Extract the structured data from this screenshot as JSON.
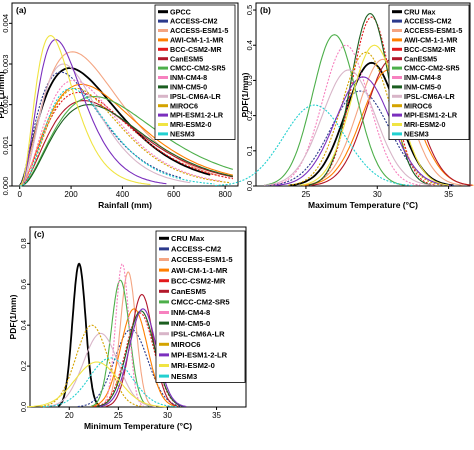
{
  "chart_data": [
    {
      "type": "line",
      "panel_label": "(a)",
      "xlabel": "Rainfall (mm)",
      "ylabel": "PDF (1/mm)",
      "xlim": [
        -30,
        850
      ],
      "ylim": [
        0,
        0.0045
      ],
      "xticks": [
        0,
        200,
        400,
        600,
        800
      ],
      "yticks": [
        0,
        0.001,
        0.002,
        0.003,
        0.004
      ],
      "ytick_labels": [
        "0.000",
        "0.001",
        "0.002",
        "0.003",
        "0.004"
      ],
      "legend_position": "top-right",
      "series": [
        {
          "name": "GPCC",
          "color": "#000000",
          "peak_x": 195,
          "peak_y": 0.0029
        },
        {
          "name": "ACCESS-CM2",
          "color": "#2b3a8c",
          "peak_x": 160,
          "peak_y": 0.0028
        },
        {
          "name": "ACCESS-ESM1-5",
          "color": "#f4a582",
          "peak_x": 205,
          "peak_y": 0.0033
        },
        {
          "name": "AWI-CM-1-1-MR",
          "color": "#ff7f00",
          "peak_x": 240,
          "peak_y": 0.0025
        },
        {
          "name": "BCC-CSM2-MR",
          "color": "#e31a1c",
          "peak_x": 230,
          "peak_y": 0.0023
        },
        {
          "name": "CanESM5",
          "color": "#b2182b",
          "peak_x": 250,
          "peak_y": 0.0021
        },
        {
          "name": "CMCC-CM2-SR5",
          "color": "#4daf4a",
          "peak_x": 290,
          "peak_y": 0.0022
        },
        {
          "name": "INM-CM4-8",
          "color": "#f781bf",
          "peak_x": 210,
          "peak_y": 0.0026
        },
        {
          "name": "INM-CM5-0",
          "color": "#1b5e20",
          "peak_x": 270,
          "peak_y": 0.002
        },
        {
          "name": "IPSL-CM6A-LR",
          "color": "#d8b5c8",
          "peak_x": 170,
          "peak_y": 0.003
        },
        {
          "name": "MIROC6",
          "color": "#d4a300",
          "peak_x": 220,
          "peak_y": 0.0024
        },
        {
          "name": "MPI-ESM1-2-LR",
          "color": "#7b2fbe",
          "peak_x": 140,
          "peak_y": 0.0036
        },
        {
          "name": "MRI-ESM2-0",
          "color": "#f0e442",
          "peak_x": 120,
          "peak_y": 0.0037
        },
        {
          "name": "NESM3",
          "color": "#22d0d0",
          "peak_x": 200,
          "peak_y": 0.0024
        }
      ]
    },
    {
      "type": "line",
      "panel_label": "(b)",
      "xlabel": "Maximum Temperature (°C)",
      "ylabel": "PDF(1/mm)",
      "xlim": [
        21.5,
        36.5
      ],
      "ylim": [
        0,
        0.52
      ],
      "xticks": [
        25,
        30,
        35
      ],
      "yticks": [
        0,
        0.1,
        0.2,
        0.3,
        0.4,
        0.5
      ],
      "ytick_labels": [
        "0.0",
        "0.1",
        "0.2",
        "0.3",
        "0.4",
        "0.5"
      ],
      "legend_position": "top-right",
      "series": [
        {
          "name": "CRU Max",
          "color": "#000000",
          "peak_x": 29.6,
          "peak_y": 0.35
        },
        {
          "name": "ACCESS-CM2",
          "color": "#2b3a8c",
          "peak_x": 28.8,
          "peak_y": 0.27
        },
        {
          "name": "ACCESS-ESM1-5",
          "color": "#f4a582",
          "peak_x": 30.4,
          "peak_y": 0.36
        },
        {
          "name": "AWI-CM-1-1-MR",
          "color": "#ff7f00",
          "peak_x": 30.8,
          "peak_y": 0.33
        },
        {
          "name": "BCC-CSM2-MR",
          "color": "#e31a1c",
          "peak_x": 29.6,
          "peak_y": 0.48
        },
        {
          "name": "CanESM5",
          "color": "#b2182b",
          "peak_x": 31.0,
          "peak_y": 0.36
        },
        {
          "name": "CMCC-CM2-SR5",
          "color": "#4daf4a",
          "peak_x": 27.0,
          "peak_y": 0.43
        },
        {
          "name": "INM-CM4-8",
          "color": "#f781bf",
          "peak_x": 27.8,
          "peak_y": 0.4
        },
        {
          "name": "INM-CM5-0",
          "color": "#1b5e20",
          "peak_x": 29.5,
          "peak_y": 0.49
        },
        {
          "name": "IPSL-CM6A-LR",
          "color": "#d8b5c8",
          "peak_x": 28.0,
          "peak_y": 0.33
        },
        {
          "name": "MIROC6",
          "color": "#d4a300",
          "peak_x": 29.2,
          "peak_y": 0.38
        },
        {
          "name": "MPI-ESM1-2-LR",
          "color": "#7b2fbe",
          "peak_x": 29.0,
          "peak_y": 0.31
        },
        {
          "name": "MRI-ESM2-0",
          "color": "#f0e442",
          "peak_x": 29.8,
          "peak_y": 0.4
        },
        {
          "name": "NESM3",
          "color": "#22d0d0",
          "peak_x": 25.6,
          "peak_y": 0.23
        }
      ]
    },
    {
      "type": "line",
      "panel_label": "(c)",
      "xlabel": "Minimum Temperature (°C)",
      "ylabel": "PDF(1/mm)",
      "xlim": [
        16,
        38
      ],
      "ylim": [
        0,
        0.88
      ],
      "xticks": [
        20,
        25,
        30,
        35
      ],
      "yticks": [
        0,
        0.2,
        0.4,
        0.6,
        0.8
      ],
      "ytick_labels": [
        "0.0",
        "0.2",
        "0.4",
        "0.6",
        "0.8"
      ],
      "legend_position": "top-right",
      "series": [
        {
          "name": "CRU Max",
          "color": "#000000",
          "peak_x": 21.0,
          "peak_y": 0.7
        },
        {
          "name": "ACCESS-CM2",
          "color": "#2b3a8c",
          "peak_x": 26.3,
          "peak_y": 0.38
        },
        {
          "name": "ACCESS-ESM1-5",
          "color": "#f4a582",
          "peak_x": 26.0,
          "peak_y": 0.66
        },
        {
          "name": "AWI-CM-1-1-MR",
          "color": "#ff7f00",
          "peak_x": 26.6,
          "peak_y": 0.48
        },
        {
          "name": "BCC-CSM2-MR",
          "color": "#e31a1c",
          "peak_x": 27.2,
          "peak_y": 0.46
        },
        {
          "name": "CanESM5",
          "color": "#b2182b",
          "peak_x": 27.4,
          "peak_y": 0.55
        },
        {
          "name": "CMCC-CM2-SR5",
          "color": "#4daf4a",
          "peak_x": 25.2,
          "peak_y": 0.62
        },
        {
          "name": "INM-CM4-8",
          "color": "#f781bf",
          "peak_x": 25.4,
          "peak_y": 0.7
        },
        {
          "name": "INM-CM5-0",
          "color": "#1b5e20",
          "peak_x": 27.3,
          "peak_y": 0.47
        },
        {
          "name": "IPSL-CM6A-LR",
          "color": "#d8b5c8",
          "peak_x": 23.2,
          "peak_y": 0.36
        },
        {
          "name": "MIROC6",
          "color": "#d4a300",
          "peak_x": 22.3,
          "peak_y": 0.4
        },
        {
          "name": "MPI-ESM1-2-LR",
          "color": "#7b2fbe",
          "peak_x": 27.5,
          "peak_y": 0.48
        },
        {
          "name": "MRI-ESM2-0",
          "color": "#f0e442",
          "peak_x": 22.8,
          "peak_y": 0.22
        },
        {
          "name": "NESM3",
          "color": "#22d0d0",
          "peak_x": 24.2,
          "peak_y": 0.24
        }
      ]
    }
  ]
}
